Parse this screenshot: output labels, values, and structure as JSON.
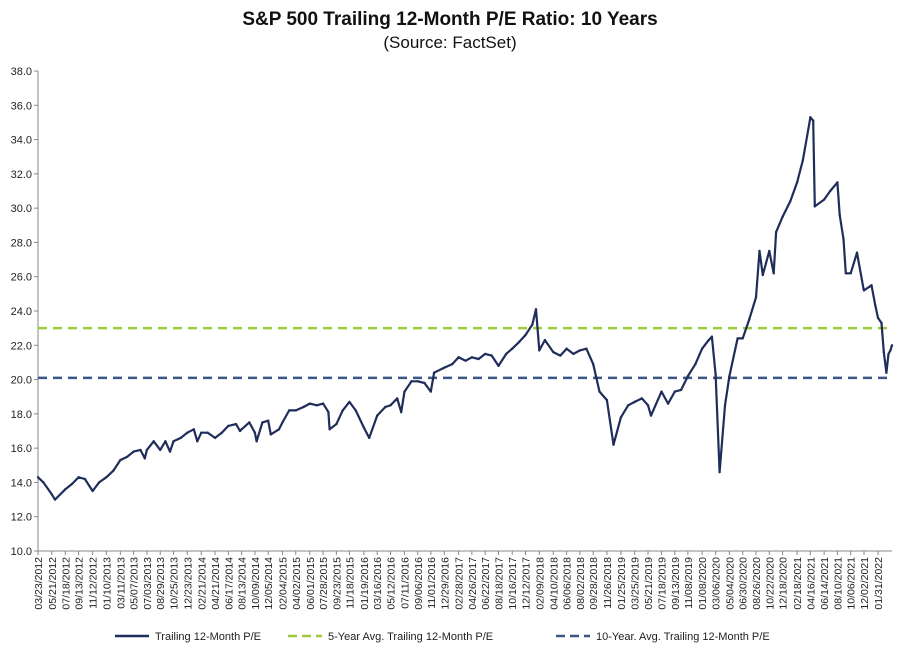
{
  "chart_data": {
    "type": "line",
    "title": "S&P 500 Trailing 12-Month P/E Ratio: 10 Years",
    "subtitle": "(Source: FactSet)",
    "ylim": [
      10,
      38
    ],
    "yticks": [
      "10.0",
      "12.0",
      "14.0",
      "16.0",
      "18.0",
      "20.0",
      "22.0",
      "24.0",
      "26.0",
      "28.0",
      "30.0",
      "32.0",
      "34.0",
      "36.0",
      "38.0"
    ],
    "xlim": [
      "03/23/2012",
      "04/01/2022"
    ],
    "x_tick_labels": [
      "03/23/2012",
      "05/21/2012",
      "07/18/2012",
      "09/13/2012",
      "11/12/2012",
      "01/10/2013",
      "03/11/2013",
      "05/07/2013",
      "07/03/2013",
      "08/29/2013",
      "10/25/2013",
      "12/23/2013",
      "02/21/2014",
      "04/21/2014",
      "06/17/2014",
      "08/13/2014",
      "10/09/2014",
      "12/05/2014",
      "02/04/2015",
      "04/02/2015",
      "06/01/2015",
      "07/28/2015",
      "09/23/2015",
      "11/18/2015",
      "01/19/2016",
      "03/16/2016",
      "05/12/2016",
      "07/11/2016",
      "09/06/2016",
      "11/01/2016",
      "12/29/2016",
      "02/28/2017",
      "04/26/2017",
      "06/22/2017",
      "08/18/2017",
      "10/16/2017",
      "12/12/2017",
      "02/09/2018",
      "04/10/2018",
      "06/06/2018",
      "08/02/2018",
      "09/28/2018",
      "11/26/2018",
      "01/25/2019",
      "03/25/2019",
      "05/21/2019",
      "07/18/2019",
      "09/13/2019",
      "11/08/2019",
      "01/08/2020",
      "03/06/2020",
      "05/04/2020",
      "06/30/2020",
      "08/26/2020",
      "10/22/2020",
      "12/18/2020",
      "02/18/2021",
      "04/16/2021",
      "06/14/2021",
      "08/10/2021",
      "10/06/2021",
      "12/02/2021",
      "01/31/2022"
    ],
    "grid": false,
    "legend_position": "bottom",
    "series": [
      {
        "name": "Trailing 12-Month P/E",
        "color": "#1f2d5a",
        "style": "solid",
        "points": [
          [
            "03/23/2012",
            14.3
          ],
          [
            "04/15/2012",
            14.0
          ],
          [
            "05/21/2012",
            13.3
          ],
          [
            "06/04/2012",
            13.0
          ],
          [
            "07/18/2012",
            13.6
          ],
          [
            "08/15/2012",
            13.9
          ],
          [
            "09/13/2012",
            14.3
          ],
          [
            "10/10/2012",
            14.2
          ],
          [
            "11/12/2012",
            13.5
          ],
          [
            "12/10/2012",
            14.0
          ],
          [
            "01/10/2013",
            14.3
          ],
          [
            "02/10/2013",
            14.7
          ],
          [
            "03/11/2013",
            15.3
          ],
          [
            "04/10/2013",
            15.5
          ],
          [
            "05/07/2013",
            15.8
          ],
          [
            "06/05/2013",
            15.9
          ],
          [
            "06/24/2013",
            15.4
          ],
          [
            "07/03/2013",
            15.9
          ],
          [
            "08/01/2013",
            16.4
          ],
          [
            "08/29/2013",
            15.9
          ],
          [
            "09/20/2013",
            16.4
          ],
          [
            "10/10/2013",
            15.8
          ],
          [
            "10/25/2013",
            16.4
          ],
          [
            "11/25/2013",
            16.6
          ],
          [
            "12/23/2013",
            16.9
          ],
          [
            "01/20/2014",
            17.1
          ],
          [
            "02/04/2014",
            16.4
          ],
          [
            "02/21/2014",
            16.9
          ],
          [
            "03/20/2014",
            16.9
          ],
          [
            "04/21/2014",
            16.6
          ],
          [
            "05/20/2014",
            16.9
          ],
          [
            "06/17/2014",
            17.3
          ],
          [
            "07/20/2014",
            17.4
          ],
          [
            "08/06/2014",
            17.0
          ],
          [
            "08/13/2014",
            17.1
          ],
          [
            "09/15/2014",
            17.5
          ],
          [
            "10/09/2014",
            16.9
          ],
          [
            "10/16/2014",
            16.4
          ],
          [
            "11/10/2014",
            17.5
          ],
          [
            "12/05/2014",
            17.6
          ],
          [
            "12/16/2014",
            16.8
          ],
          [
            "01/20/2015",
            17.1
          ],
          [
            "02/04/2015",
            17.5
          ],
          [
            "03/05/2015",
            18.2
          ],
          [
            "04/02/2015",
            18.2
          ],
          [
            "05/05/2015",
            18.4
          ],
          [
            "06/01/2015",
            18.6
          ],
          [
            "07/01/2015",
            18.5
          ],
          [
            "07/28/2015",
            18.6
          ],
          [
            "08/20/2015",
            18.1
          ],
          [
            "08/25/2015",
            17.1
          ],
          [
            "09/23/2015",
            17.4
          ],
          [
            "10/20/2015",
            18.2
          ],
          [
            "11/18/2015",
            18.7
          ],
          [
            "12/15/2015",
            18.2
          ],
          [
            "01/19/2016",
            17.2
          ],
          [
            "02/11/2016",
            16.6
          ],
          [
            "03/16/2016",
            17.9
          ],
          [
            "04/20/2016",
            18.4
          ],
          [
            "05/12/2016",
            18.5
          ],
          [
            "06/10/2016",
            18.9
          ],
          [
            "06/27/2016",
            18.1
          ],
          [
            "07/11/2016",
            19.3
          ],
          [
            "08/10/2016",
            19.9
          ],
          [
            "09/06/2016",
            19.9
          ],
          [
            "10/05/2016",
            19.8
          ],
          [
            "11/01/2016",
            19.3
          ],
          [
            "11/15/2016",
            20.4
          ],
          [
            "12/29/2016",
            20.7
          ],
          [
            "02/01/2017",
            20.9
          ],
          [
            "02/28/2017",
            21.3
          ],
          [
            "03/30/2017",
            21.1
          ],
          [
            "04/26/2017",
            21.3
          ],
          [
            "05/25/2017",
            21.2
          ],
          [
            "06/22/2017",
            21.5
          ],
          [
            "07/20/2017",
            21.4
          ],
          [
            "08/18/2017",
            20.8
          ],
          [
            "09/20/2017",
            21.5
          ],
          [
            "10/16/2017",
            21.8
          ],
          [
            "11/15/2017",
            22.2
          ],
          [
            "12/12/2017",
            22.6
          ],
          [
            "01/10/2018",
            23.2
          ],
          [
            "01/26/2018",
            24.1
          ],
          [
            "02/09/2018",
            21.7
          ],
          [
            "03/05/2018",
            22.3
          ],
          [
            "04/10/2018",
            21.6
          ],
          [
            "05/10/2018",
            21.4
          ],
          [
            "06/06/2018",
            21.8
          ],
          [
            "07/05/2018",
            21.5
          ],
          [
            "08/02/2018",
            21.7
          ],
          [
            "08/30/2018",
            21.8
          ],
          [
            "09/28/2018",
            20.9
          ],
          [
            "10/25/2018",
            19.3
          ],
          [
            "11/26/2018",
            18.8
          ],
          [
            "12/24/2018",
            16.2
          ],
          [
            "01/25/2019",
            17.8
          ],
          [
            "02/25/2019",
            18.5
          ],
          [
            "03/25/2019",
            18.7
          ],
          [
            "04/25/2019",
            18.9
          ],
          [
            "05/21/2019",
            18.5
          ],
          [
            "06/03/2019",
            17.9
          ],
          [
            "07/18/2019",
            19.3
          ],
          [
            "08/15/2019",
            18.6
          ],
          [
            "09/13/2019",
            19.3
          ],
          [
            "10/10/2019",
            19.4
          ],
          [
            "11/08/2019",
            20.2
          ],
          [
            "12/10/2019",
            20.9
          ],
          [
            "01/08/2020",
            21.8
          ],
          [
            "02/05/2020",
            22.3
          ],
          [
            "02/19/2020",
            22.5
          ],
          [
            "03/06/2020",
            20.3
          ],
          [
            "03/23/2020",
            14.6
          ],
          [
            "04/15/2020",
            18.5
          ],
          [
            "05/04/2020",
            20.2
          ],
          [
            "06/08/2020",
            22.4
          ],
          [
            "06/30/2020",
            22.4
          ],
          [
            "07/28/2020",
            23.5
          ],
          [
            "08/26/2020",
            24.8
          ],
          [
            "09/10/2020",
            27.5
          ],
          [
            "09/24/2020",
            26.1
          ],
          [
            "10/22/2020",
            27.5
          ],
          [
            "11/10/2020",
            26.2
          ],
          [
            "11/20/2020",
            28.6
          ],
          [
            "12/18/2020",
            29.5
          ],
          [
            "01/20/2021",
            30.4
          ],
          [
            "02/18/2021",
            31.5
          ],
          [
            "03/15/2021",
            32.8
          ],
          [
            "04/16/2021",
            35.3
          ],
          [
            "04/28/2021",
            35.1
          ],
          [
            "05/05/2021",
            30.1
          ],
          [
            "06/14/2021",
            30.5
          ],
          [
            "07/10/2021",
            31.0
          ],
          [
            "08/10/2021",
            31.5
          ],
          [
            "08/20/2021",
            29.6
          ],
          [
            "09/05/2021",
            28.2
          ],
          [
            "09/15/2021",
            26.2
          ],
          [
            "10/06/2021",
            26.2
          ],
          [
            "11/02/2021",
            27.4
          ],
          [
            "11/30/2021",
            25.3
          ],
          [
            "12/02/2021",
            25.2
          ],
          [
            "01/03/2022",
            25.5
          ],
          [
            "01/20/2022",
            24.3
          ],
          [
            "01/31/2022",
            23.6
          ],
          [
            "02/15/2022",
            23.3
          ],
          [
            "02/25/2022",
            21.6
          ],
          [
            "03/08/2022",
            20.4
          ],
          [
            "03/17/2022",
            21.5
          ],
          [
            "03/25/2022",
            21.7
          ],
          [
            "04/01/2022",
            22.0
          ]
        ]
      },
      {
        "name": "5-Year Avg. Trailing 12-Month P/E",
        "color": "#9ccc3a",
        "style": "dashed",
        "value": 23.0
      },
      {
        "name": "10-Year. Avg. Trailing 12-Month P/E",
        "color": "#3d5685",
        "style": "dashed",
        "value": 20.1
      }
    ]
  }
}
